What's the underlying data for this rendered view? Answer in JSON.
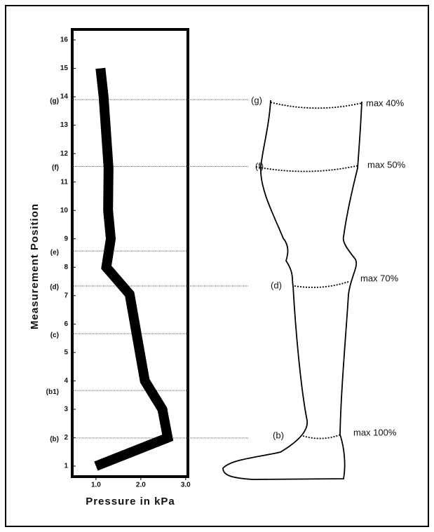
{
  "chart_data": {
    "type": "line",
    "x_label": "Pressure in kPa",
    "y_label": "Measurement Position",
    "x": [
      1.0,
      2.6,
      2.48,
      2.09,
      1.75,
      1.23,
      1.33,
      1.27,
      1.28,
      1.17,
      1.1
    ],
    "values": [
      1,
      2,
      3,
      4,
      7.05,
      8,
      9,
      10,
      11.5,
      14,
      15
    ],
    "color": "#000000",
    "xlim": [
      0.47,
      3.05
    ],
    "xticks": [
      {
        "value": 1,
        "label": "1.0"
      },
      {
        "value": 2,
        "label": "2.0"
      },
      {
        "value": 3,
        "label": "3.0"
      }
    ],
    "ylim": [
      0.63,
      16.37
    ],
    "yticks": [
      1,
      2,
      3,
      4,
      5,
      6,
      7,
      8,
      9,
      10,
      11,
      12,
      13,
      14,
      15,
      16
    ],
    "reference_lines": [
      {
        "value": 13.9,
        "label": "(g)"
      },
      {
        "value": 11.55,
        "label": "(f)"
      },
      {
        "value": 8.57,
        "label": "(e)"
      },
      {
        "value": 7.34,
        "label": "(d)"
      },
      {
        "value": 5.66,
        "label": "(c)"
      },
      {
        "value": 3.66,
        "label": "(b1)"
      },
      {
        "value": 1.99,
        "label": "(b)"
      }
    ],
    "leg_annotations": [
      {
        "label": "(g)",
        "note": "max 40%"
      },
      {
        "label": "(f)",
        "note": "max 50%"
      },
      {
        "label": "(d)",
        "note": "max 70%"
      },
      {
        "label": "(b)",
        "note": "max 100%"
      }
    ]
  }
}
